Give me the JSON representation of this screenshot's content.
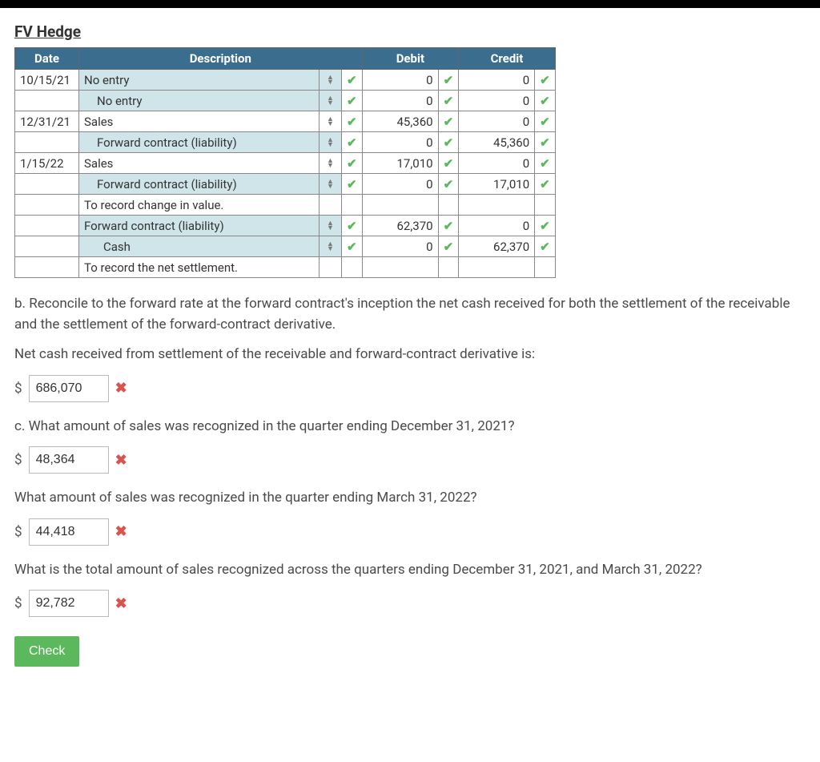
{
  "title": "FV Hedge",
  "table": {
    "headers": {
      "date": "Date",
      "description": "Description",
      "debit": "Debit",
      "credit": "Credit"
    },
    "rows": [
      {
        "date": "10/15/21",
        "desc": "No entry",
        "indent": 0,
        "hasSort": true,
        "deskMark": true,
        "debit": "0",
        "debitMark": true,
        "credit": "0",
        "creditMark": true,
        "shade": true
      },
      {
        "date": "",
        "desc": "No entry",
        "indent": 1,
        "hasSort": true,
        "deskMark": true,
        "debit": "0",
        "debitMark": true,
        "credit": "0",
        "creditMark": true,
        "shade": true
      },
      {
        "date": "12/31/21",
        "desc": "Sales",
        "indent": 0,
        "hasSort": true,
        "deskMark": true,
        "debit": "45,360",
        "debitMark": true,
        "credit": "0",
        "creditMark": true,
        "shade": false
      },
      {
        "date": "",
        "desc": "Forward contract (liability)",
        "indent": 1,
        "hasSort": true,
        "deskMark": true,
        "debit": "0",
        "debitMark": true,
        "credit": "45,360",
        "creditMark": true,
        "shade": true
      },
      {
        "date": "1/15/22",
        "desc": "Sales",
        "indent": 0,
        "hasSort": true,
        "deskMark": true,
        "debit": "17,010",
        "debitMark": true,
        "credit": "0",
        "creditMark": true,
        "shade": false
      },
      {
        "date": "",
        "desc": "Forward contract (liability)",
        "indent": 1,
        "hasSort": true,
        "deskMark": true,
        "debit": "0",
        "debitMark": true,
        "credit": "17,010",
        "creditMark": true,
        "shade": true
      },
      {
        "date": "",
        "desc": "To record change in value.",
        "indent": 0,
        "hasSort": false,
        "deskMark": false,
        "debit": "",
        "debitMark": false,
        "credit": "",
        "creditMark": false,
        "shade": false,
        "note": true
      },
      {
        "date": "",
        "desc": "Forward contract (liability)",
        "indent": 0,
        "hasSort": true,
        "deskMark": true,
        "debit": "62,370",
        "debitMark": true,
        "credit": "0",
        "creditMark": true,
        "shade": true
      },
      {
        "date": "",
        "desc": "Cash",
        "indent": 2,
        "hasSort": true,
        "deskMark": true,
        "debit": "0",
        "debitMark": true,
        "credit": "62,370",
        "creditMark": true,
        "shade": true
      },
      {
        "date": "",
        "desc": "To record the net settlement.",
        "indent": 0,
        "hasSort": false,
        "deskMark": false,
        "debit": "",
        "debitMark": false,
        "credit": "",
        "creditMark": false,
        "shade": false,
        "note": true
      }
    ]
  },
  "questions": {
    "b_text": "b. Reconcile to the forward rate at the forward contract's inception the net cash received for both the settlement of the receivable and the settlement of the forward-contract derivative.",
    "b_sub": "Net cash received from settlement of the receivable and forward-contract derivative is:",
    "b_value": "686,070",
    "b_correct": false,
    "c_text": "c. What amount of sales was recognized in the quarter ending December 31, 2021?",
    "c_value": "48,364",
    "c_correct": false,
    "c2_text": "What amount of sales was recognized in the quarter ending March 31, 2022?",
    "c2_value": "44,418",
    "c2_correct": false,
    "c3_text": "What is the total amount of sales recognized across the quarters ending December 31, 2021, and March 31, 2022?",
    "c3_value": "92,782",
    "c3_correct": false
  },
  "check_label": "Check",
  "currency": "$"
}
